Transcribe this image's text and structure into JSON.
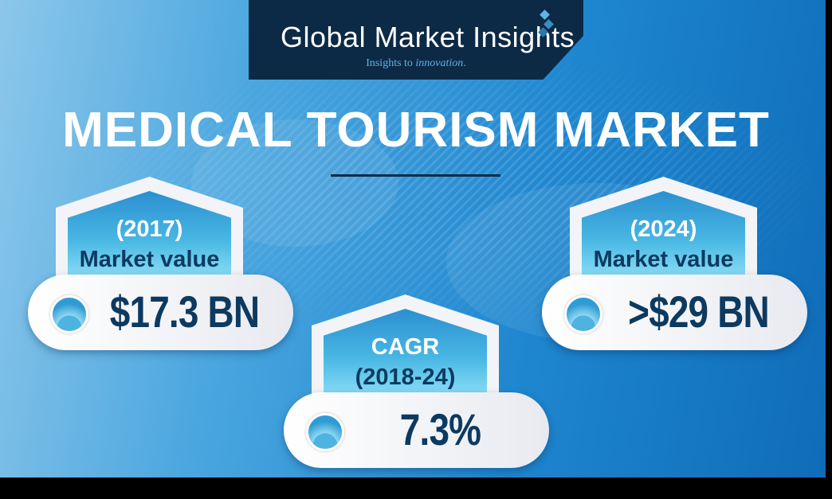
{
  "brand": {
    "name": "Global Market Insights",
    "tagline_prefix": "Insights to ",
    "tagline_emphasis": "innovation",
    "tagline_suffix": "."
  },
  "title": "MEDICAL TOURISM MARKET",
  "stats": [
    {
      "line1": "(2017)",
      "line2": "Market value",
      "value": "$17.3 BN"
    },
    {
      "line1": "CAGR",
      "line2": "(2018-24)",
      "value": "7.3%"
    },
    {
      "line1": "(2024)",
      "line2": "Market value",
      "value": ">$29 BN"
    }
  ],
  "colors": {
    "navy": "#0c2a45",
    "value_text": "#0c3a60",
    "accent": "#5fb4e6"
  }
}
